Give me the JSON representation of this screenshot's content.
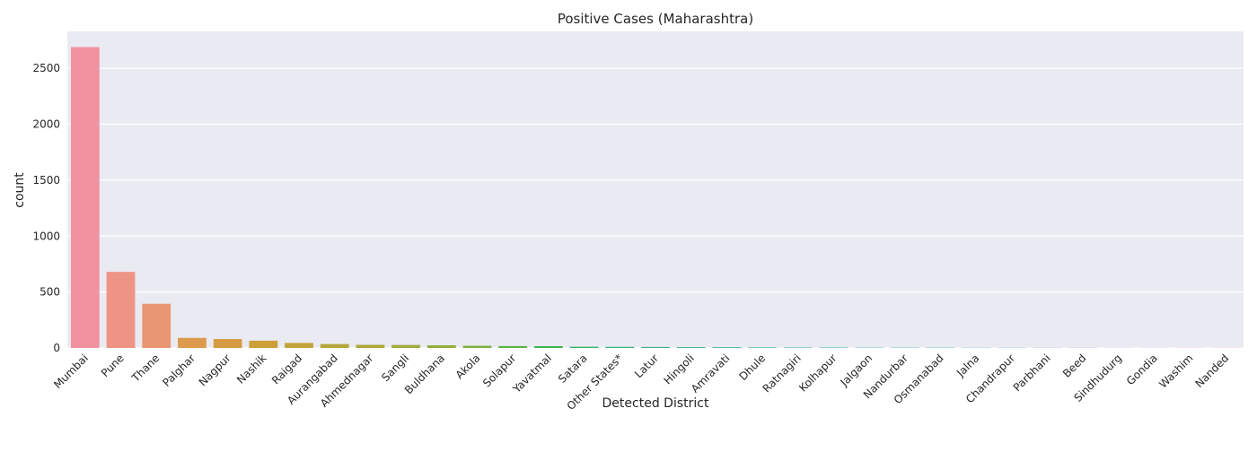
{
  "chart_data": {
    "type": "bar",
    "title": "Positive Cases (Maharashtra)",
    "xlabel": "Detected District",
    "ylabel": "count",
    "ylim": [
      0,
      2830
    ],
    "yticks": [
      0,
      500,
      1000,
      1500,
      2000,
      2500
    ],
    "grid": true,
    "categories": [
      "Mumbai",
      "Pune",
      "Thane",
      "Palghar",
      "Nagpur",
      "Nashik",
      "Raigad",
      "Aurangabad",
      "Ahmednagar",
      "Sangli",
      "Buldhana",
      "Akola",
      "Solapur",
      "Yavatmal",
      "Satara",
      "Other States*",
      "Latur",
      "Hingoli",
      "Amravati",
      "Dhule",
      "Ratnagiri",
      "Kolhapur",
      "Jalgaon",
      "Nandurbar",
      "Osmanabad",
      "Jalna",
      "Chandrapur",
      "Parbhani",
      "Beed",
      "Sindhudurg",
      "Gondia",
      "Washim",
      "Nanded"
    ],
    "values": [
      2690,
      680,
      395,
      90,
      80,
      65,
      45,
      35,
      28,
      27,
      24,
      20,
      17,
      16,
      11,
      10,
      9,
      8,
      7,
      5,
      4,
      4,
      3,
      3,
      3,
      2,
      2,
      2,
      2,
      1,
      1,
      1,
      1
    ],
    "colors": [
      "#f0929f",
      "#ee9485",
      "#e99672",
      "#dd9a4e",
      "#d69c43",
      "#cc9f39",
      "#c1a43a",
      "#b6a63b",
      "#aba83b",
      "#a1ab3c",
      "#92ae3d",
      "#7eb13e",
      "#59b444",
      "#3bb54e",
      "#3cb46a",
      "#3db47e",
      "#3db38b",
      "#3eb395",
      "#3fb29f",
      "#3fb1a8",
      "#40b0b1",
      "#42b0ba",
      "#43afc3",
      "#45adcf",
      "#48abdb",
      "#53a7e8",
      "#6fa1f2",
      "#8c9af4",
      "#a792f3",
      "#bd8af0",
      "#d182ea",
      "#e37ae0",
      "#ee7cc9"
    ]
  }
}
